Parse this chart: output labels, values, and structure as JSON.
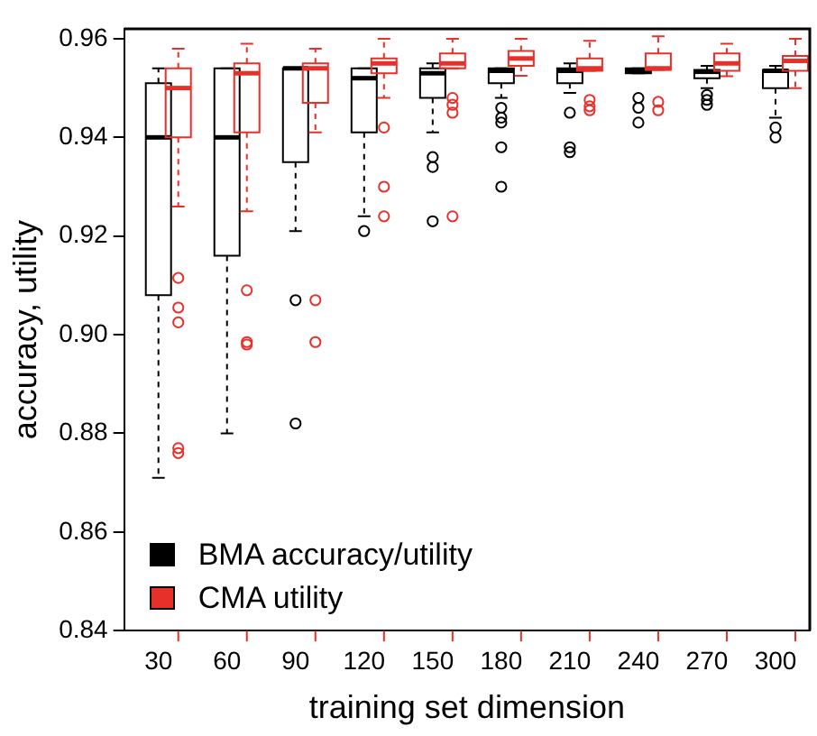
{
  "chart_data": {
    "type": "box",
    "xlabel": "training set dimension",
    "ylabel": "accuracy, utility",
    "categories": [
      "30",
      "60",
      "90",
      "120",
      "150",
      "180",
      "210",
      "240",
      "270",
      "300"
    ],
    "ylim": [
      0.84,
      0.962
    ],
    "yticks": [
      {
        "value": 0.84,
        "label": "0.84"
      },
      {
        "value": 0.86,
        "label": "0.86"
      },
      {
        "value": 0.88,
        "label": "0.88"
      },
      {
        "value": 0.9,
        "label": "0.90"
      },
      {
        "value": 0.92,
        "label": "0.92"
      },
      {
        "value": 0.94,
        "label": "0.94"
      },
      {
        "value": 0.96,
        "label": "0.96"
      }
    ],
    "grid": false,
    "legend": "bottom left",
    "marker": "circle",
    "series": [
      {
        "name": "BMA accuracy/utility",
        "color": "#000000",
        "boxes": [
          {
            "low": 0.871,
            "q1": 0.908,
            "median": 0.94,
            "q3": 0.951,
            "high": 0.954
          },
          {
            "low": 0.88,
            "q1": 0.916,
            "median": 0.94,
            "q3": 0.954,
            "high": 0.954
          },
          {
            "low": 0.921,
            "q1": 0.935,
            "median": 0.954,
            "q3": 0.954,
            "high": 0.954,
            "outliers": [
              0.907,
              0.882
            ]
          },
          {
            "low": 0.924,
            "q1": 0.941,
            "median": 0.952,
            "q3": 0.954,
            "high": 0.954,
            "outliers": [
              0.921
            ]
          },
          {
            "low": 0.941,
            "q1": 0.948,
            "median": 0.953,
            "q3": 0.954,
            "high": 0.955,
            "outliers": [
              0.936,
              0.934,
              0.923
            ]
          },
          {
            "low": 0.948,
            "q1": 0.951,
            "median": 0.9535,
            "q3": 0.954,
            "high": 0.954,
            "outliers": [
              0.946,
              0.944,
              0.943,
              0.938,
              0.93
            ]
          },
          {
            "low": 0.949,
            "q1": 0.951,
            "median": 0.9535,
            "q3": 0.954,
            "high": 0.955,
            "outliers": [
              0.945,
              0.938,
              0.937
            ]
          },
          {
            "low": 0.953,
            "q1": 0.953,
            "median": 0.9535,
            "q3": 0.954,
            "high": 0.954,
            "outliers": [
              0.948,
              0.946,
              0.943
            ]
          },
          {
            "low": 0.95,
            "q1": 0.952,
            "median": 0.9533,
            "q3": 0.9537,
            "high": 0.9545,
            "outliers": [
              0.9486,
              0.9476,
              0.9466
            ]
          },
          {
            "low": 0.944,
            "q1": 0.95,
            "median": 0.9535,
            "q3": 0.9537,
            "high": 0.9545,
            "outliers": [
              0.942,
              0.94
            ]
          }
        ]
      },
      {
        "name": "CMA utility",
        "color": "#e8302a",
        "boxes": [
          {
            "low": 0.926,
            "q1": 0.94,
            "median": 0.95,
            "q3": 0.954,
            "high": 0.958,
            "outliers": [
              0.9115,
              0.9055,
              0.9025,
              0.877,
              0.876
            ]
          },
          {
            "low": 0.925,
            "q1": 0.941,
            "median": 0.953,
            "q3": 0.955,
            "high": 0.959,
            "outliers": [
              0.909,
              0.8985,
              0.898
            ]
          },
          {
            "low": 0.941,
            "q1": 0.947,
            "median": 0.954,
            "q3": 0.955,
            "high": 0.958,
            "outliers": [
              0.907,
              0.8985
            ]
          },
          {
            "low": 0.948,
            "q1": 0.953,
            "median": 0.955,
            "q3": 0.956,
            "high": 0.96,
            "outliers": [
              0.942,
              0.93,
              0.924
            ]
          },
          {
            "low": 0.954,
            "q1": 0.954,
            "median": 0.955,
            "q3": 0.957,
            "high": 0.96,
            "outliers": [
              0.948,
              0.9466,
              0.945,
              0.924
            ]
          },
          {
            "low": 0.9525,
            "q1": 0.9545,
            "median": 0.956,
            "q3": 0.9575,
            "high": 0.96
          },
          {
            "low": 0.9535,
            "q1": 0.9535,
            "median": 0.954,
            "q3": 0.956,
            "high": 0.9596,
            "outliers": [
              0.9476,
              0.9463,
              0.9455
            ]
          },
          {
            "low": 0.9537,
            "q1": 0.9537,
            "median": 0.954,
            "q3": 0.957,
            "high": 0.9605,
            "outliers": [
              0.9472,
              0.9455
            ]
          },
          {
            "low": 0.9524,
            "q1": 0.9535,
            "median": 0.955,
            "q3": 0.957,
            "high": 0.959
          },
          {
            "low": 0.95,
            "q1": 0.9535,
            "median": 0.9555,
            "q3": 0.9565,
            "high": 0.96
          }
        ]
      }
    ]
  }
}
